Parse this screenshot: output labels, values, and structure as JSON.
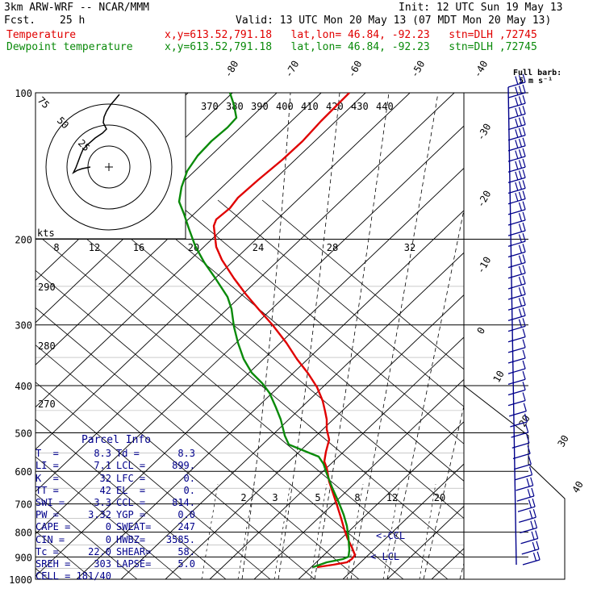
{
  "header": {
    "model": "3km ARW-WRF -- NCAR/MMM",
    "init": "Init: 12 UTC Sun 19 May 13",
    "fcst_label": "Fcst.",
    "fcst_value": "25 h",
    "valid": "Valid: 13 UTC Mon 20 May 13 (07 MDT Mon 20 May 13)",
    "temp_label": "Temperature",
    "dew_label": "Dewpoint temperature",
    "loc_info": "x,y=613.52,791.18   lat,lon= 46.84, -92.23   stn=DLH ,72745"
  },
  "wind_legend": {
    "line1": "Full barb:",
    "line2": "5 m s⁻¹"
  },
  "chart_data": {
    "type": "skew-t",
    "pressure_levels": [
      100,
      200,
      300,
      400,
      500,
      600,
      700,
      800,
      900,
      1000
    ],
    "pressure_labels": [
      "100",
      "200",
      "300",
      "400",
      "500",
      "600",
      "700",
      "800",
      "900",
      "1000"
    ],
    "temperature_labels": [
      "-80",
      "-70",
      "-60",
      "-50",
      "-40",
      "-30",
      "-20",
      "-10",
      "0",
      "10",
      "20",
      "30",
      "40"
    ],
    "theta_e_labels": [
      "370",
      "380",
      "390",
      "400",
      "410",
      "420",
      "430",
      "440"
    ],
    "hodo_speed_labels": [
      "8",
      "12",
      "16",
      "20",
      "24",
      "28",
      "32"
    ],
    "hodo_units": "kts",
    "hodo_ring_labels": [
      "75",
      "50",
      "25"
    ],
    "theta_labels": [
      "290",
      "280",
      "270"
    ],
    "mixing_ratio_labels": [
      "2",
      "3",
      "5",
      "8",
      "12",
      "20"
    ],
    "annotations": {
      "ccl": "<-CCL",
      "lcl": "< LCL"
    },
    "series": [
      {
        "name": "Temperature",
        "color": "#e00000",
        "points": [
          [
            433,
            115
          ],
          [
            418,
            130
          ],
          [
            398,
            150
          ],
          [
            375,
            175
          ],
          [
            350,
            198
          ],
          [
            320,
            223
          ],
          [
            295,
            245
          ],
          [
            285,
            258
          ],
          [
            268,
            272
          ],
          [
            265,
            280
          ],
          [
            268,
            306
          ],
          [
            275,
            322
          ],
          [
            290,
            345
          ],
          [
            305,
            365
          ],
          [
            322,
            385
          ],
          [
            338,
            403
          ],
          [
            355,
            425
          ],
          [
            368,
            445
          ],
          [
            382,
            463
          ],
          [
            393,
            480
          ],
          [
            400,
            497
          ],
          [
            403,
            510
          ],
          [
            405,
            520
          ],
          [
            405,
            532
          ],
          [
            408,
            545
          ],
          [
            404,
            560
          ],
          [
            402,
            572
          ],
          [
            405,
            580
          ],
          [
            408,
            597
          ],
          [
            413,
            612
          ],
          [
            418,
            627
          ],
          [
            423,
            643
          ],
          [
            427,
            657
          ],
          [
            431,
            668
          ],
          [
            436,
            678
          ],
          [
            440,
            688
          ],
          [
            436,
            693
          ],
          [
            430,
            697
          ],
          [
            413,
            700
          ],
          [
            393,
            703
          ]
        ]
      },
      {
        "name": "Dewpoint temperature",
        "color": "#0a8a0a",
        "points": [
          [
            285,
            115
          ],
          [
            290,
            130
          ],
          [
            293,
            146
          ],
          [
            282,
            158
          ],
          [
            262,
            175
          ],
          [
            245,
            193
          ],
          [
            232,
            212
          ],
          [
            225,
            232
          ],
          [
            222,
            250
          ],
          [
            228,
            265
          ],
          [
            234,
            283
          ],
          [
            242,
            305
          ],
          [
            253,
            325
          ],
          [
            267,
            345
          ],
          [
            282,
            368
          ],
          [
            287,
            383
          ],
          [
            290,
            405
          ],
          [
            295,
            425
          ],
          [
            302,
            445
          ],
          [
            312,
            462
          ],
          [
            325,
            475
          ],
          [
            334,
            487
          ],
          [
            342,
            505
          ],
          [
            348,
            520
          ],
          [
            353,
            540
          ],
          [
            358,
            551
          ],
          [
            375,
            558
          ],
          [
            395,
            566
          ],
          [
            401,
            575
          ],
          [
            405,
            587
          ],
          [
            412,
            605
          ],
          [
            420,
            623
          ],
          [
            426,
            638
          ],
          [
            430,
            652
          ],
          [
            432,
            667
          ],
          [
            433,
            682
          ],
          [
            432,
            690
          ],
          [
            425,
            693
          ],
          [
            405,
            697
          ],
          [
            388,
            703
          ]
        ]
      }
    ],
    "wind_barb_count": 46,
    "hodograph": {
      "points": [
        [
          148,
          117
        ],
        [
          143,
          123
        ],
        [
          137,
          130
        ],
        [
          132,
          138
        ],
        [
          129,
          145
        ],
        [
          128,
          152
        ],
        [
          132,
          160
        ],
        [
          127,
          165
        ],
        [
          118,
          171
        ],
        [
          110,
          178
        ],
        [
          103,
          185
        ],
        [
          100,
          192
        ],
        [
          97,
          200
        ],
        [
          94,
          208
        ],
        [
          91,
          214
        ],
        [
          96,
          211
        ],
        [
          102,
          209
        ],
        [
          112,
          207
        ]
      ]
    }
  },
  "parcel": {
    "title": "Parcel Info",
    "rows": [
      [
        "T  =",
        "8.3",
        "Td =",
        "8.3"
      ],
      [
        "LI =",
        "7.1",
        "LCL =",
        "899."
      ],
      [
        "K  =",
        "32",
        "LFC =",
        "0."
      ],
      [
        "TT =",
        "42",
        "EL  =",
        "0."
      ],
      [
        "SWI =",
        "3.3",
        "CCL =",
        "814."
      ],
      [
        "PW =",
        "3.32",
        "YGP =",
        "0.0"
      ],
      [
        "CAPE =",
        "0",
        "SWEAT=",
        "247"
      ],
      [
        "CIN =",
        "0",
        "HWBZ=",
        "3585."
      ],
      [
        "Tc =",
        "22.0",
        "SHEAR=",
        "58."
      ],
      [
        "SREH =",
        "303",
        "LAPSE=",
        "5.0"
      ]
    ],
    "cell": "CELL = 181/40"
  }
}
